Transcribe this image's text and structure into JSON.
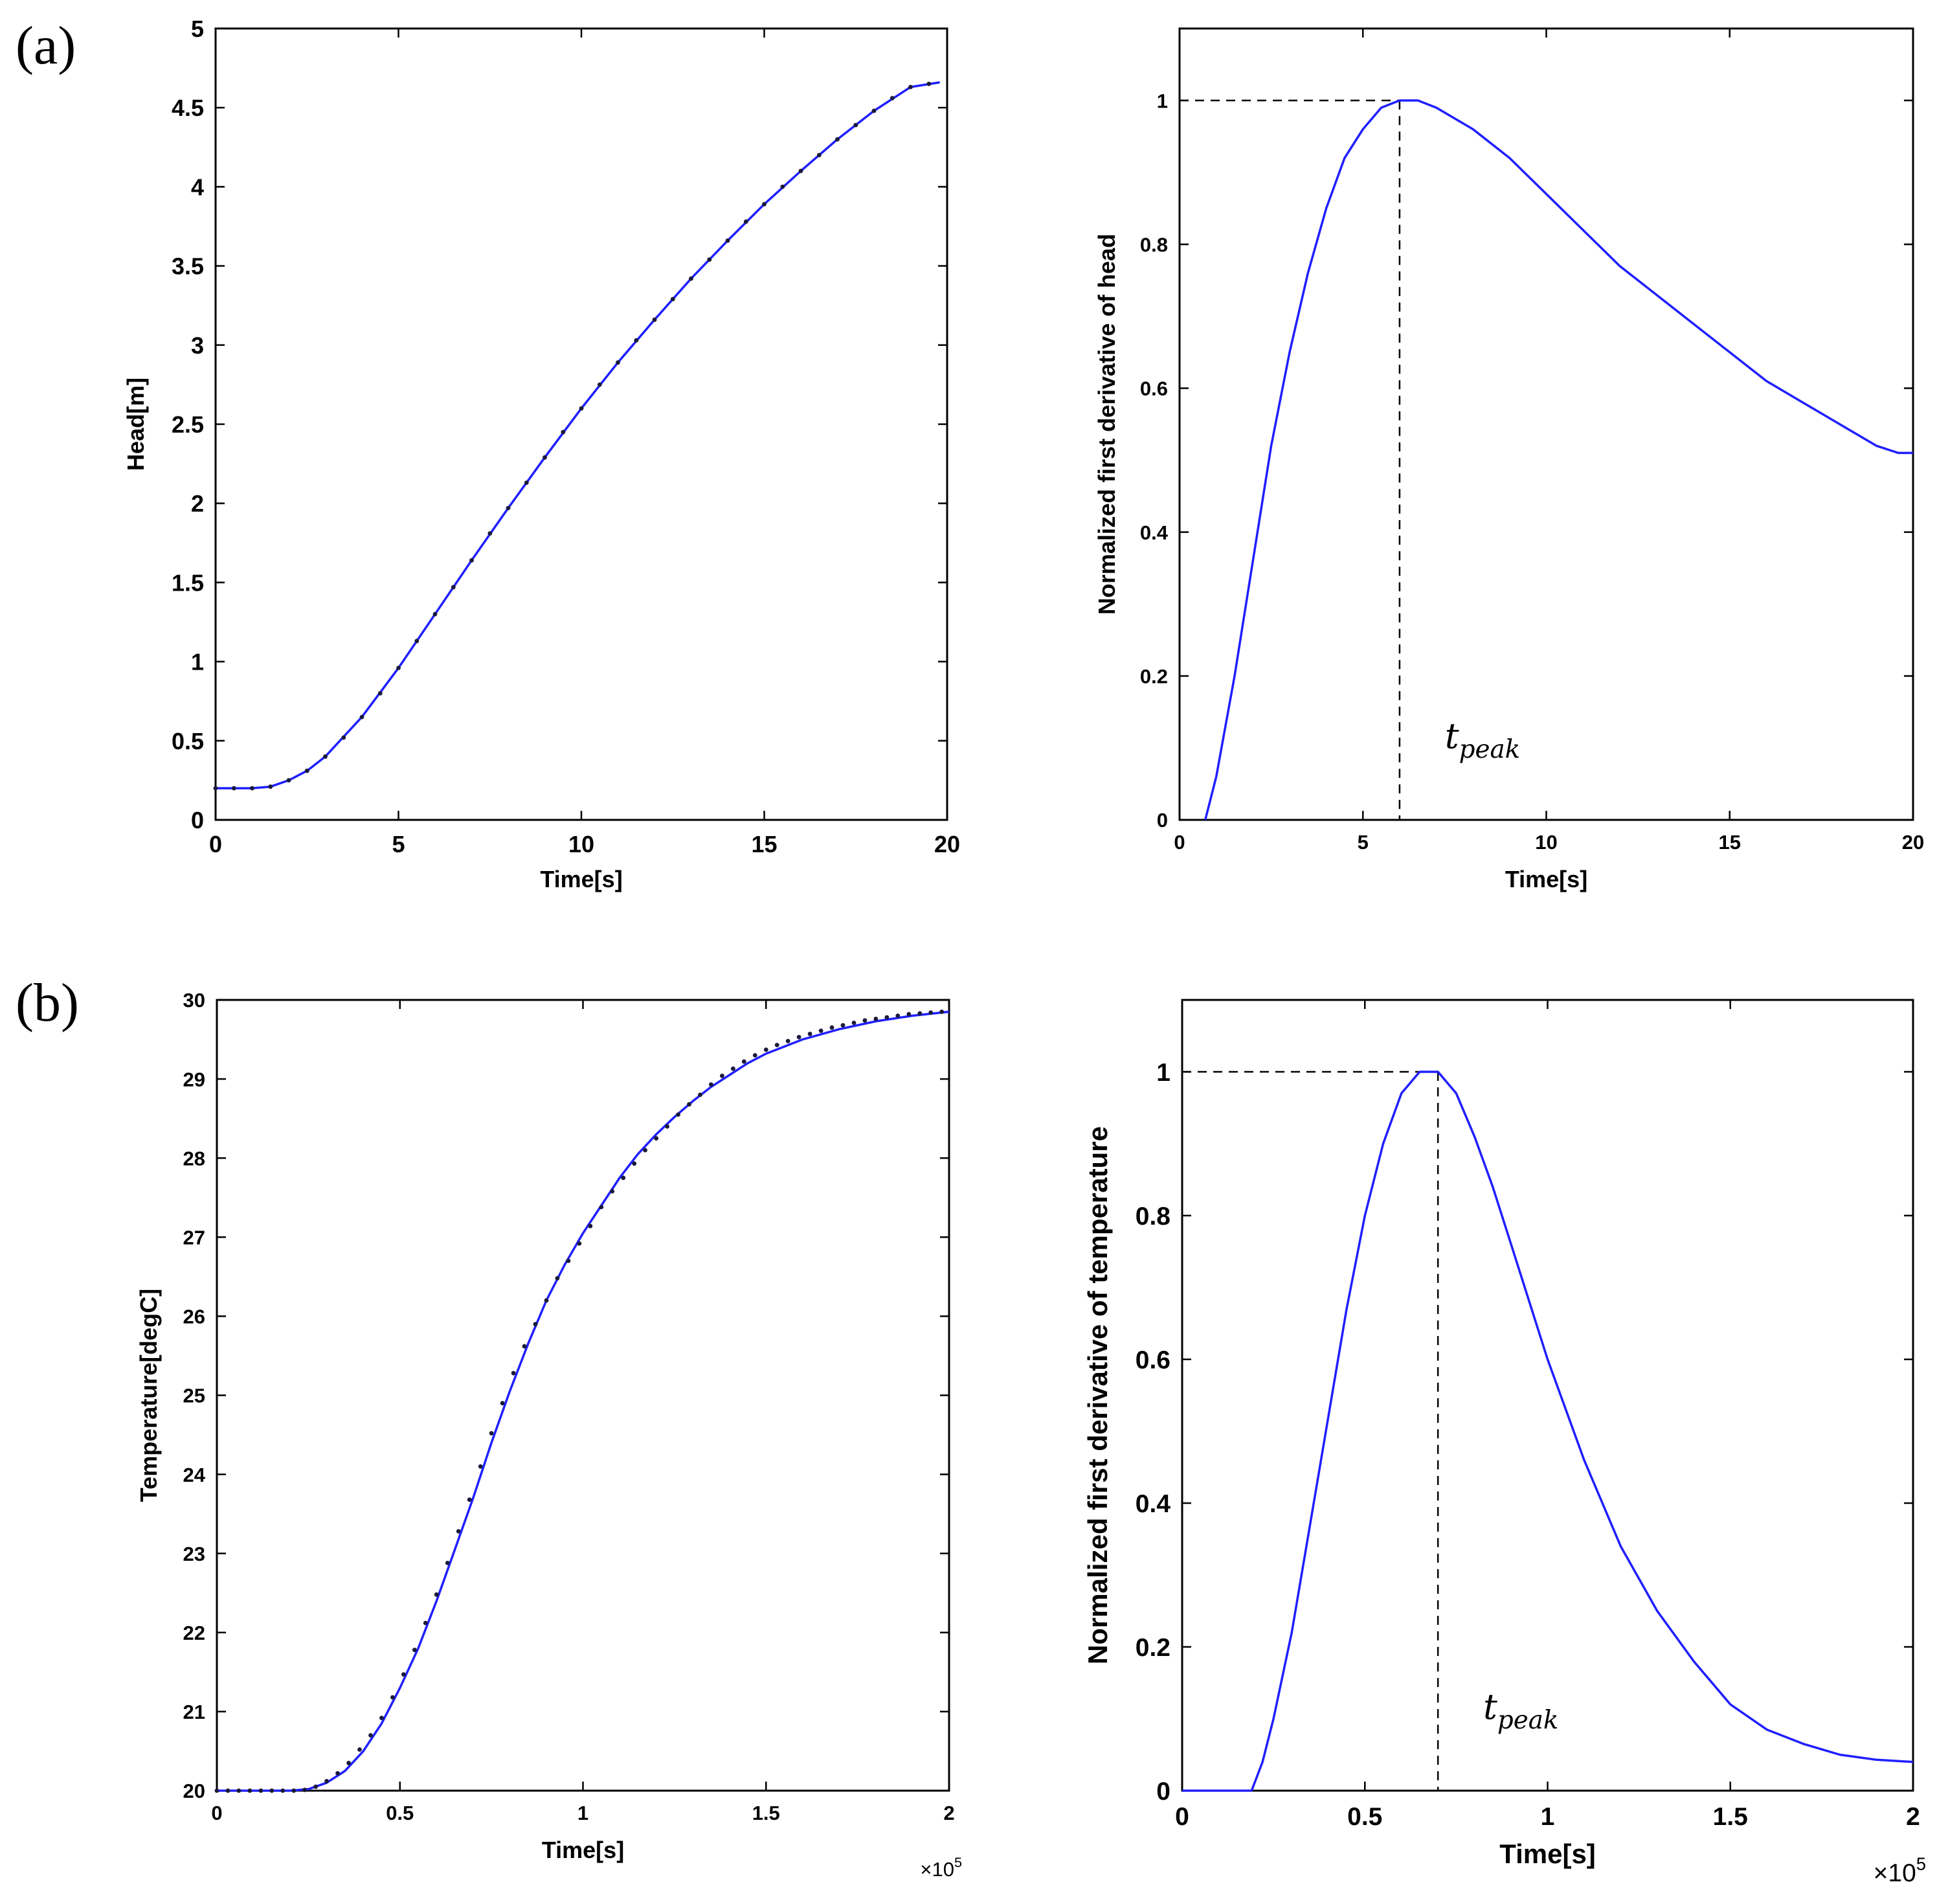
{
  "panel_labels": {
    "a": "(a)",
    "b": "(b)"
  },
  "chart_data": [
    {
      "id": "a-left",
      "type": "line",
      "xlabel": "Time[s]",
      "ylabel": "Head[m]",
      "xlim": [
        0,
        20
      ],
      "ylim": [
        0,
        5
      ],
      "xticks": [
        {
          "v": 0,
          "label": "0"
        },
        {
          "v": 5,
          "label": "5"
        },
        {
          "v": 10,
          "label": "10"
        },
        {
          "v": 15,
          "label": "15"
        },
        {
          "v": 20,
          "label": "20"
        }
      ],
      "yticks": [
        {
          "v": 0,
          "label": "0"
        },
        {
          "v": 0.5,
          "label": "0.5"
        },
        {
          "v": 1,
          "label": "1"
        },
        {
          "v": 1.5,
          "label": "1.5"
        },
        {
          "v": 2,
          "label": "2"
        },
        {
          "v": 2.5,
          "label": "2.5"
        },
        {
          "v": 3,
          "label": "3"
        },
        {
          "v": 3.5,
          "label": "3.5"
        },
        {
          "v": 4,
          "label": "4"
        },
        {
          "v": 4.5,
          "label": "4.5"
        },
        {
          "v": 5,
          "label": "5"
        }
      ],
      "series": [
        {
          "name": "model",
          "style": "line",
          "x": [
            0,
            1,
            1.5,
            2,
            2.5,
            3,
            4,
            5,
            6,
            7,
            8,
            9,
            10,
            11,
            12,
            13,
            14,
            15,
            16,
            17,
            18,
            19,
            19.8
          ],
          "y": [
            0.2,
            0.2,
            0.21,
            0.25,
            0.31,
            0.4,
            0.65,
            0.96,
            1.3,
            1.64,
            1.97,
            2.29,
            2.6,
            2.89,
            3.16,
            3.42,
            3.66,
            3.89,
            4.1,
            4.3,
            4.48,
            4.63,
            4.66
          ]
        },
        {
          "name": "observed",
          "style": "markers",
          "x": [
            0,
            0.5,
            1,
            1.5,
            2,
            2.5,
            3,
            3.5,
            4,
            4.5,
            5,
            5.5,
            6,
            6.5,
            7,
            7.5,
            8,
            8.5,
            9,
            9.5,
            10,
            10.5,
            11,
            11.5,
            12,
            12.5,
            13,
            13.5,
            14,
            14.5,
            15,
            15.5,
            16,
            16.5,
            17,
            17.5,
            18,
            18.5,
            19,
            19.5
          ],
          "y": [
            0.2,
            0.2,
            0.2,
            0.21,
            0.25,
            0.31,
            0.4,
            0.52,
            0.65,
            0.8,
            0.96,
            1.13,
            1.3,
            1.47,
            1.64,
            1.81,
            1.97,
            2.13,
            2.29,
            2.45,
            2.6,
            2.75,
            2.89,
            3.03,
            3.16,
            3.29,
            3.42,
            3.54,
            3.66,
            3.78,
            3.89,
            4.0,
            4.1,
            4.2,
            4.3,
            4.39,
            4.48,
            4.56,
            4.63,
            4.65
          ]
        }
      ]
    },
    {
      "id": "a-right",
      "type": "line",
      "xlabel": "Time[s]",
      "ylabel": "Normalized first derivative of head",
      "xlim": [
        0,
        20
      ],
      "ylim": [
        0,
        1.1
      ],
      "xticks": [
        {
          "v": 0,
          "label": "0"
        },
        {
          "v": 5,
          "label": "5"
        },
        {
          "v": 10,
          "label": "10"
        },
        {
          "v": 15,
          "label": "15"
        },
        {
          "v": 20,
          "label": "20"
        }
      ],
      "yticks": [
        {
          "v": 0,
          "label": "0"
        },
        {
          "v": 0.2,
          "label": "0.2"
        },
        {
          "v": 0.4,
          "label": "0.4"
        },
        {
          "v": 0.6,
          "label": "0.6"
        },
        {
          "v": 0.8,
          "label": "0.8"
        },
        {
          "v": 1,
          "label": "1"
        }
      ],
      "series": [
        {
          "name": "derivative",
          "style": "line",
          "x": [
            0.7,
            1,
            1.5,
            2,
            2.5,
            3,
            3.5,
            4,
            4.5,
            5,
            5.5,
            6,
            6.5,
            7,
            8,
            9,
            10,
            11,
            12,
            13,
            14,
            15,
            16,
            17,
            18,
            19,
            19.6,
            20
          ],
          "y": [
            0,
            0.06,
            0.2,
            0.36,
            0.52,
            0.65,
            0.76,
            0.85,
            0.92,
            0.96,
            0.99,
            1.0,
            1.0,
            0.99,
            0.96,
            0.92,
            0.87,
            0.82,
            0.77,
            0.73,
            0.69,
            0.65,
            0.61,
            0.58,
            0.55,
            0.52,
            0.51,
            0.51
          ]
        }
      ],
      "peak": {
        "x": 6,
        "y": 1
      },
      "annotation": "t_peak"
    },
    {
      "id": "b-left",
      "type": "line",
      "xlabel": "Time[s]",
      "ylabel": "Temperature[degC]",
      "xlim": [
        0,
        2
      ],
      "ylim": [
        20,
        30
      ],
      "xscale_label": "×10",
      "xscale_exp": "5",
      "xticks": [
        {
          "v": 0,
          "label": "0"
        },
        {
          "v": 0.5,
          "label": "0.5"
        },
        {
          "v": 1,
          "label": "1"
        },
        {
          "v": 1.5,
          "label": "1.5"
        },
        {
          "v": 2,
          "label": "2"
        }
      ],
      "yticks": [
        {
          "v": 20,
          "label": "20"
        },
        {
          "v": 21,
          "label": "21"
        },
        {
          "v": 22,
          "label": "22"
        },
        {
          "v": 23,
          "label": "23"
        },
        {
          "v": 24,
          "label": "24"
        },
        {
          "v": 25,
          "label": "25"
        },
        {
          "v": 26,
          "label": "26"
        },
        {
          "v": 27,
          "label": "27"
        },
        {
          "v": 28,
          "label": "28"
        },
        {
          "v": 29,
          "label": "29"
        },
        {
          "v": 30,
          "label": "30"
        }
      ],
      "series": [
        {
          "name": "model",
          "style": "line",
          "x": [
            0,
            0.2,
            0.25,
            0.3,
            0.35,
            0.4,
            0.45,
            0.5,
            0.55,
            0.6,
            0.65,
            0.7,
            0.75,
            0.8,
            0.85,
            0.9,
            0.95,
            1.0,
            1.05,
            1.1,
            1.15,
            1.2,
            1.25,
            1.3,
            1.35,
            1.4,
            1.45,
            1.5,
            1.6,
            1.7,
            1.8,
            1.9,
            2.0
          ],
          "y": [
            20,
            20,
            20.02,
            20.1,
            20.25,
            20.5,
            20.85,
            21.3,
            21.8,
            22.4,
            23.05,
            23.7,
            24.4,
            25.05,
            25.65,
            26.2,
            26.65,
            27.05,
            27.4,
            27.75,
            28.05,
            28.3,
            28.52,
            28.72,
            28.9,
            29.05,
            29.2,
            29.32,
            29.5,
            29.63,
            29.73,
            29.8,
            29.85
          ]
        },
        {
          "name": "observed",
          "style": "markers",
          "x": [
            0,
            0.03,
            0.06,
            0.09,
            0.12,
            0.15,
            0.18,
            0.21,
            0.24,
            0.27,
            0.3,
            0.33,
            0.36,
            0.39,
            0.42,
            0.45,
            0.48,
            0.51,
            0.54,
            0.57,
            0.6,
            0.63,
            0.66,
            0.69,
            0.72,
            0.75,
            0.78,
            0.81,
            0.84,
            0.87,
            0.9,
            0.93,
            0.96,
            0.99,
            1.02,
            1.05,
            1.08,
            1.11,
            1.14,
            1.17,
            1.2,
            1.23,
            1.26,
            1.29,
            1.32,
            1.35,
            1.38,
            1.41,
            1.44,
            1.47,
            1.5,
            1.53,
            1.56,
            1.59,
            1.62,
            1.65,
            1.68,
            1.71,
            1.74,
            1.77,
            1.8,
            1.83,
            1.86,
            1.89,
            1.92,
            1.95,
            1.98
          ],
          "y": [
            20,
            20,
            20,
            20,
            20,
            20,
            20,
            20,
            20.01,
            20.05,
            20.12,
            20.22,
            20.35,
            20.52,
            20.7,
            20.92,
            21.18,
            21.47,
            21.78,
            22.12,
            22.48,
            22.88,
            23.28,
            23.68,
            24.1,
            24.52,
            24.9,
            25.28,
            25.62,
            25.9,
            26.2,
            26.48,
            26.7,
            26.92,
            27.14,
            27.38,
            27.58,
            27.75,
            27.93,
            28.1,
            28.25,
            28.4,
            28.55,
            28.68,
            28.8,
            28.93,
            29.04,
            29.13,
            29.22,
            29.3,
            29.37,
            29.43,
            29.48,
            29.53,
            29.57,
            29.61,
            29.65,
            29.68,
            29.71,
            29.74,
            29.76,
            29.78,
            29.8,
            29.82,
            29.83,
            29.84,
            29.85
          ]
        }
      ]
    },
    {
      "id": "b-right",
      "type": "line",
      "xlabel": "Time[s]",
      "ylabel": "Normalized first derivative of temperature",
      "xlim": [
        0,
        2
      ],
      "ylim": [
        0,
        1.1
      ],
      "xscale_label": "×10",
      "xscale_exp": "5",
      "xticks": [
        {
          "v": 0,
          "label": "0"
        },
        {
          "v": 0.5,
          "label": "0.5"
        },
        {
          "v": 1,
          "label": "1"
        },
        {
          "v": 1.5,
          "label": "1.5"
        },
        {
          "v": 2,
          "label": "2"
        }
      ],
      "yticks": [
        {
          "v": 0,
          "label": "0"
        },
        {
          "v": 0.2,
          "label": "0.2"
        },
        {
          "v": 0.4,
          "label": "0.4"
        },
        {
          "v": 0.6,
          "label": "0.6"
        },
        {
          "v": 0.8,
          "label": "0.8"
        },
        {
          "v": 1,
          "label": "1"
        }
      ],
      "series": [
        {
          "name": "derivative",
          "style": "line",
          "x": [
            0,
            0.19,
            0.22,
            0.25,
            0.3,
            0.35,
            0.4,
            0.45,
            0.5,
            0.55,
            0.6,
            0.65,
            0.7,
            0.75,
            0.8,
            0.85,
            0.9,
            0.95,
            1.0,
            1.1,
            1.2,
            1.3,
            1.4,
            1.5,
            1.6,
            1.7,
            1.8,
            1.9,
            2.0
          ],
          "y": [
            0,
            0,
            0.04,
            0.1,
            0.22,
            0.37,
            0.52,
            0.67,
            0.8,
            0.9,
            0.97,
            1.0,
            1.0,
            0.97,
            0.91,
            0.84,
            0.76,
            0.68,
            0.6,
            0.46,
            0.34,
            0.25,
            0.18,
            0.12,
            0.085,
            0.065,
            0.05,
            0.043,
            0.04
          ]
        }
      ],
      "peak": {
        "x": 0.7,
        "y": 1
      },
      "annotation": "t_peak"
    }
  ]
}
